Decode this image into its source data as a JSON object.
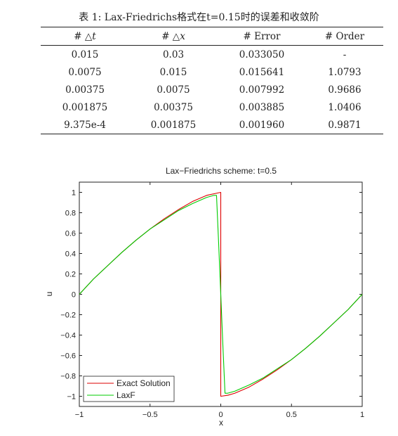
{
  "table": {
    "caption": "表 1: Lax-Friedrichs格式在t=0.15时的误差和收敛阶",
    "headers": [
      {
        "prefix": "# ",
        "sym": "△",
        "var": "t"
      },
      {
        "prefix": "# ",
        "sym": "△",
        "var": "x"
      },
      {
        "prefix": "# ",
        "sym": "",
        "var": "",
        "text": "Error"
      },
      {
        "prefix": "# ",
        "sym": "",
        "var": "",
        "text": "Order"
      }
    ],
    "rows": [
      [
        "0.015",
        "0.03",
        "0.033050",
        "-"
      ],
      [
        "0.0075",
        "0.015",
        "0.015641",
        "1.0793"
      ],
      [
        "0.00375",
        "0.0075",
        "0.007992",
        "0.9686"
      ],
      [
        "0.001875",
        "0.00375",
        "0.003885",
        "1.0406"
      ],
      [
        "9.375e-4",
        "0.001875",
        "0.001960",
        "0.9871"
      ]
    ]
  },
  "chart_data": {
    "type": "line",
    "title": "Lax−Friedrichs scheme: t=0.5",
    "xlabel": "x",
    "ylabel": "u",
    "xlim": [
      -1,
      1
    ],
    "ylim": [
      -1.1,
      1.1
    ],
    "xticks": [
      -1,
      -0.5,
      0,
      0.5,
      1
    ],
    "xtick_labels": [
      "−1",
      "−0.5",
      "0",
      "0.5",
      "1"
    ],
    "yticks": [
      -1,
      -0.8,
      -0.6,
      -0.4,
      -0.2,
      0,
      0.2,
      0.4,
      0.6,
      0.8,
      1
    ],
    "ytick_labels": [
      "−1",
      "−0.8",
      "−0.6",
      "−0.4",
      "−0.2",
      "0",
      "0.2",
      "0.4",
      "0.6",
      "0.8",
      "1"
    ],
    "grid": false,
    "legend_position": "bottom-left",
    "series": [
      {
        "name": "Exact Solution",
        "color": "#dd0000",
        "x": [
          -1,
          -0.9,
          -0.8,
          -0.7,
          -0.6,
          -0.5,
          -0.4,
          -0.3,
          -0.2,
          -0.1,
          0,
          0,
          0.05,
          0.1,
          0.2,
          0.3,
          0.4,
          0.5,
          0.6,
          0.7,
          0.8,
          0.9,
          1
        ],
        "y": [
          0,
          0.15,
          0.28,
          0.41,
          0.53,
          0.64,
          0.74,
          0.83,
          0.91,
          0.97,
          1.0,
          -1.0,
          -0.99,
          -0.97,
          -0.91,
          -0.83,
          -0.74,
          -0.64,
          -0.53,
          -0.41,
          -0.28,
          -0.15,
          0
        ]
      },
      {
        "name": "LaxF",
        "color": "#00cc00",
        "x": [
          -1,
          -0.9,
          -0.8,
          -0.7,
          -0.6,
          -0.5,
          -0.4,
          -0.3,
          -0.2,
          -0.1,
          -0.05,
          -0.03,
          -0.015,
          0,
          0.015,
          0.03,
          0.05,
          0.1,
          0.2,
          0.3,
          0.4,
          0.5,
          0.6,
          0.7,
          0.8,
          0.9,
          1
        ],
        "y": [
          0,
          0.15,
          0.28,
          0.41,
          0.53,
          0.64,
          0.73,
          0.82,
          0.89,
          0.95,
          0.97,
          0.97,
          0.5,
          0,
          -0.5,
          -0.97,
          -0.97,
          -0.95,
          -0.89,
          -0.82,
          -0.73,
          -0.64,
          -0.53,
          -0.41,
          -0.28,
          -0.15,
          0
        ]
      }
    ]
  }
}
